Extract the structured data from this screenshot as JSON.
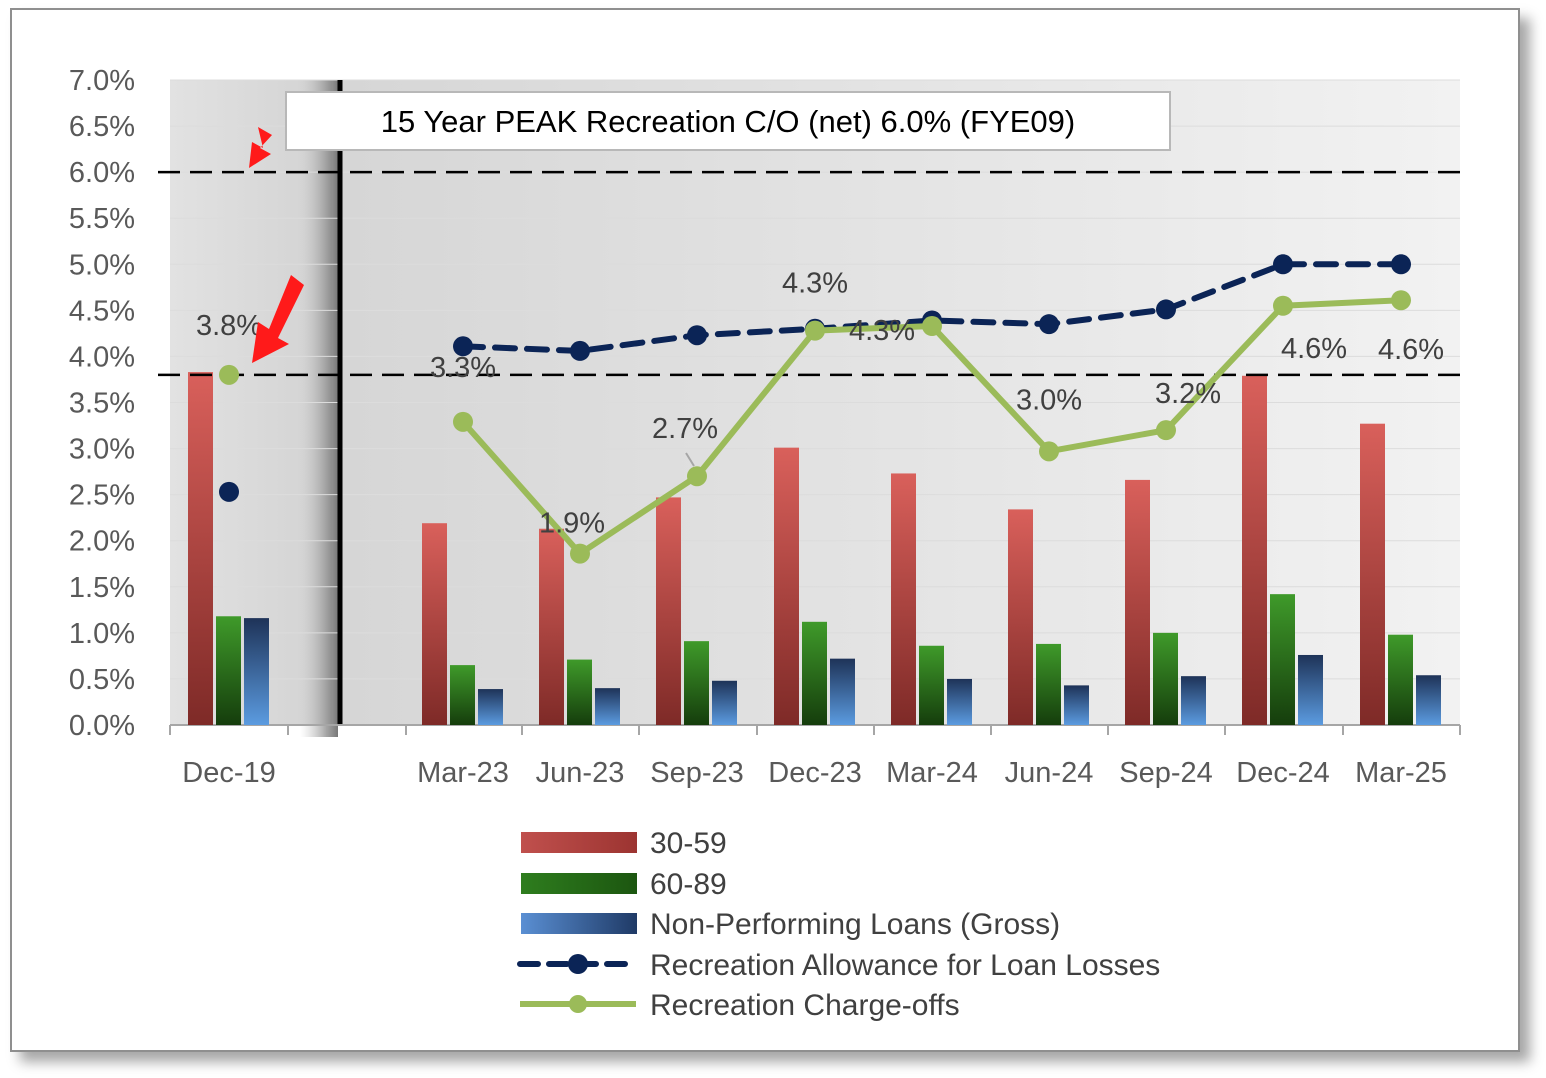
{
  "chart_data": {
    "type": "bar",
    "title": "",
    "xlabel": "",
    "ylabel": "",
    "ylim": [
      0,
      7
    ],
    "y_tick_labels": [
      "0.0%",
      "0.5%",
      "1.0%",
      "1.5%",
      "2.0%",
      "2.5%",
      "3.0%",
      "3.5%",
      "4.0%",
      "4.5%",
      "5.0%",
      "5.5%",
      "6.0%",
      "6.5%",
      "7.0%"
    ],
    "categories": [
      "Dec-19",
      "",
      "Mar-23",
      "Jun-23",
      "Sep-23",
      "Dec-23",
      "Mar-24",
      "Jun-24",
      "Sep-24",
      "Dec-24",
      "Mar-25"
    ],
    "series": [
      {
        "name": "30-59",
        "type": "bar",
        "color": "#c0504d",
        "values": [
          3.83,
          null,
          2.19,
          2.13,
          2.47,
          3.01,
          2.73,
          2.34,
          2.66,
          3.79,
          3.27
        ]
      },
      {
        "name": "60-89",
        "type": "bar",
        "color": "#2e7d1e",
        "values": [
          1.18,
          null,
          0.65,
          0.71,
          0.91,
          1.12,
          0.86,
          0.88,
          1.0,
          1.42,
          0.98
        ]
      },
      {
        "name": "Non-Performing Loans (Gross)",
        "type": "bar",
        "color": "#4a7ec2",
        "values": [
          1.16,
          null,
          0.39,
          0.4,
          0.48,
          0.72,
          0.5,
          0.43,
          0.53,
          0.76,
          0.54
        ]
      },
      {
        "name": "Recreation Allowance for Loan Losses",
        "type": "line",
        "style": "dashed",
        "color": "#0b2456",
        "values": [
          2.53,
          null,
          4.11,
          4.06,
          4.23,
          4.3,
          4.39,
          4.35,
          4.51,
          5.0,
          5.0
        ]
      },
      {
        "name": "Recreation Charge-offs",
        "type": "line",
        "style": "solid",
        "color": "#9bbb59",
        "values": [
          3.8,
          null,
          3.29,
          1.86,
          2.7,
          4.28,
          4.33,
          2.97,
          3.2,
          4.55,
          4.61
        ],
        "labels": [
          "3.8%",
          null,
          "3.3%",
          "1.9%",
          "2.7%",
          "4.3%",
          "4.3%",
          "3.0%",
          "3.2%",
          "4.6%",
          "4.6%"
        ]
      }
    ],
    "reference_lines": [
      {
        "value": 6.0,
        "style": "dashed"
      },
      {
        "value": 3.8,
        "style": "dashed"
      }
    ],
    "annotation": "15 Year PEAK Recreation C/O (net) 6.0% (FYE09)",
    "legend_position": "bottom-center"
  }
}
